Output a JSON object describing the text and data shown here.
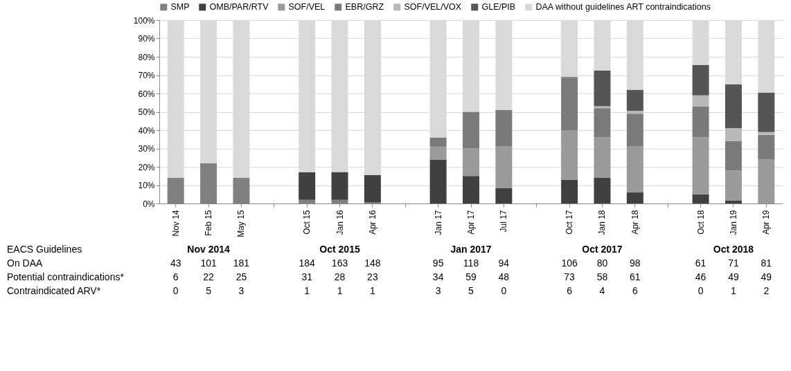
{
  "chart_data": {
    "type": "bar",
    "stacked": true,
    "legend": "top",
    "grid": "y",
    "categories": [
      "Nov 14",
      "Feb 15",
      "May 15",
      null,
      "Oct 15",
      "Jan 16",
      "Apr 16",
      null,
      "Jan 17",
      "Apr 17",
      "Jul 17",
      null,
      "Oct 17",
      "Jan 18",
      "Apr 18",
      null,
      "Oct 18",
      "Jan 19",
      "Apr 19"
    ],
    "ylim": [
      0,
      100
    ],
    "yticks": [
      {
        "value": 0,
        "label": "0%"
      },
      {
        "value": 10,
        "label": "10%"
      },
      {
        "value": 20,
        "label": "20%"
      },
      {
        "value": 30,
        "label": "30%"
      },
      {
        "value": 40,
        "label": "40%"
      },
      {
        "value": 50,
        "label": "50%"
      },
      {
        "value": 60,
        "label": "60%"
      },
      {
        "value": 70,
        "label": "70%"
      },
      {
        "value": 80,
        "label": "80%"
      },
      {
        "value": 90,
        "label": "90%"
      },
      {
        "value": 100,
        "label": "100%"
      }
    ],
    "series": [
      {
        "name": "SMP",
        "color": "#808080",
        "values": [
          14,
          22,
          14,
          null,
          2,
          2,
          0.7,
          null,
          0,
          0,
          0,
          null,
          0,
          0,
          0,
          null,
          0,
          0,
          0
        ]
      },
      {
        "name": "OMB/PAR/RTV",
        "color": "#404040",
        "values": [
          0,
          0,
          0,
          null,
          15,
          15.2,
          14.8,
          null,
          24,
          15,
          8.5,
          null,
          13,
          14,
          6,
          null,
          5,
          1.5,
          0
        ]
      },
      {
        "name": "SOF/VEL",
        "color": "#9a9a9a",
        "values": [
          0,
          0,
          0,
          null,
          0,
          0,
          0,
          null,
          7,
          15,
          22.5,
          null,
          27,
          22,
          25,
          null,
          31,
          16.5,
          24
        ]
      },
      {
        "name": "EBR/GRZ",
        "color": "#7a7a7a",
        "values": [
          0,
          0,
          0,
          null,
          0,
          0,
          0,
          null,
          5,
          20,
          20,
          null,
          28.5,
          16,
          18,
          null,
          17,
          16,
          13.5
        ]
      },
      {
        "name": "SOF/VEL/VOX",
        "color": "#b8b8b8",
        "values": [
          0,
          0,
          0,
          null,
          0,
          0,
          0,
          null,
          0,
          0,
          0,
          null,
          0,
          1,
          1.5,
          null,
          6,
          7,
          1.5
        ]
      },
      {
        "name": "GLE/PIB",
        "color": "#555555",
        "values": [
          0,
          0,
          0,
          null,
          0,
          0,
          0,
          null,
          0,
          0,
          0,
          null,
          0.5,
          19.5,
          11.5,
          null,
          16.5,
          24,
          21.5
        ]
      },
      {
        "name": "DAA without guidelines ART contraindications",
        "color": "#d9d9d9",
        "values": [
          86,
          78,
          86,
          null,
          83,
          82.8,
          84.5,
          null,
          64,
          50,
          49,
          null,
          31,
          27.5,
          38,
          null,
          24.5,
          35,
          39.5
        ]
      }
    ],
    "annotations": [
      "EACS Guidelines",
      "Nov 2014",
      "Oct 2015",
      "Jan 2017",
      "Oct 2017",
      "Oct 2018",
      "On DAA",
      "43",
      "101",
      "181",
      "184",
      "163",
      "148",
      "95",
      "118",
      "94",
      "106",
      "80",
      "98",
      "61",
      "71",
      "81",
      "Potential contraindications*",
      "6",
      "22",
      "25",
      "31",
      "28",
      "23",
      "34",
      "59",
      "48",
      "73",
      "58",
      "61",
      "46",
      "49",
      "49",
      "Contraindicated ARV*",
      "0",
      "5",
      "3",
      "1",
      "1",
      "1",
      "3",
      "5",
      "0",
      "6",
      "4",
      "6",
      "0",
      "1",
      "2"
    ]
  }
}
